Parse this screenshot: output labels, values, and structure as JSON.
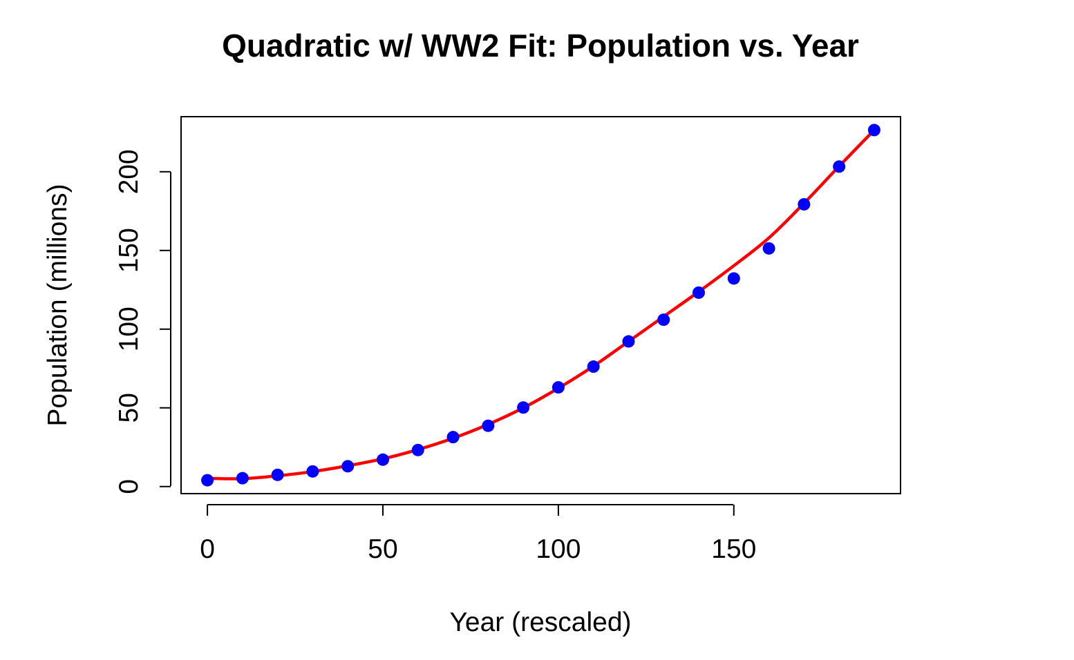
{
  "chart_data": {
    "type": "scatter",
    "title": "Quadratic w/ WW2 Fit: Population vs. Year",
    "xlabel": "Year (rescaled)",
    "ylabel": "Population (millions)",
    "xlim": [
      -7.5,
      197.5
    ],
    "ylim": [
      -4.5,
      235
    ],
    "x_ticks": [
      0,
      50,
      100,
      150
    ],
    "x_tick_labels": [
      "0",
      "50",
      "100",
      "150"
    ],
    "y_ticks": [
      0,
      50,
      100,
      150,
      200
    ],
    "y_tick_labels": [
      "0",
      "50",
      "100",
      "150",
      "200"
    ],
    "grid": false,
    "legend": "none",
    "series": [
      {
        "type": "scatter",
        "color": "#0000ff",
        "x": [
          0,
          10,
          20,
          30,
          40,
          50,
          60,
          70,
          80,
          90,
          100,
          110,
          120,
          130,
          140,
          150,
          160,
          170,
          180,
          190
        ],
        "y": [
          4,
          5.3,
          7.4,
          9.6,
          12.9,
          17.1,
          23.2,
          31.4,
          38.6,
          50.2,
          63.0,
          76.2,
          92.2,
          106.0,
          123.2,
          132.2,
          151.3,
          179.3,
          203.3,
          226.5
        ]
      },
      {
        "type": "line",
        "color": "#ff0000",
        "x": [
          0,
          10,
          20,
          30,
          40,
          50,
          60,
          70,
          80,
          90,
          100,
          110,
          120,
          130,
          140,
          150,
          160,
          170,
          180,
          190
        ],
        "y": [
          5.2,
          5.0,
          6.8,
          9.5,
          13.2,
          17.6,
          23.5,
          30.7,
          39.5,
          50.0,
          62.5,
          76.5,
          92.2,
          108.0,
          123.8,
          140.3,
          158.0,
          180.0,
          203.5,
          226.5
        ]
      }
    ]
  }
}
